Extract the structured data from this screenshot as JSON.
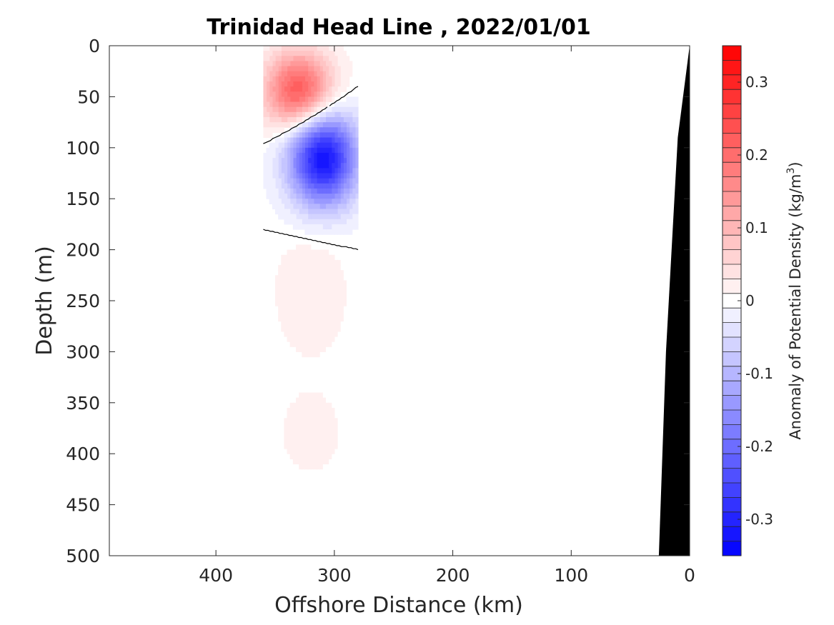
{
  "chart_data": {
    "type": "heatmap",
    "title": "Trinidad Head Line , 2022/01/01",
    "xlabel": "Offshore Distance (km)",
    "ylabel": "Depth (m)",
    "xlim": [
      490,
      0
    ],
    "ylim": [
      0,
      500
    ],
    "x_reversed": true,
    "y_reversed": true,
    "x_ticks": [
      400,
      300,
      200,
      100,
      0
    ],
    "x_tick_labels": [
      "400",
      "300",
      "200",
      "100",
      "0"
    ],
    "y_ticks": [
      0,
      50,
      100,
      150,
      200,
      250,
      300,
      350,
      400,
      450,
      500
    ],
    "y_tick_labels": [
      "0",
      "50",
      "100",
      "150",
      "200",
      "250",
      "300",
      "350",
      "400",
      "450",
      "500"
    ],
    "colorbar": {
      "label_main": "Anomaly of Potential Density (kg/m",
      "label_superscript": "3",
      "label_close": ")",
      "range": [
        -0.35,
        0.35
      ],
      "levels": 35,
      "ticks": [
        0.3,
        0.2,
        0.1,
        0,
        -0.1,
        -0.2,
        -0.3
      ],
      "tick_labels": [
        "0.3",
        "0.2",
        "0.1",
        "0",
        "-0.1",
        "-0.2",
        "-0.3"
      ],
      "colormap": "blue-white-red"
    },
    "data_extent_km": [
      280,
      360
    ],
    "contour_level": 0,
    "anomaly_regions": [
      {
        "type": "positive",
        "peak": 0.24,
        "distance_km": 330,
        "depth_m": 45,
        "depth_range_m": [
          0,
          70
        ]
      },
      {
        "type": "negative",
        "peak": -0.33,
        "distance_km": 310,
        "depth_m": 110,
        "depth_range_m": [
          75,
          160
        ]
      },
      {
        "type": "positive",
        "peak": 0.03,
        "distance_km": 320,
        "depth_m": 240,
        "depth_range_m": [
          180,
          290
        ]
      },
      {
        "type": "positive",
        "peak": 0.02,
        "distance_km": 320,
        "depth_m": 380,
        "depth_range_m": [
          340,
          420
        ]
      }
    ],
    "bathymetry": [
      {
        "distance_km": 0,
        "depth_m": 0
      },
      {
        "distance_km": 10,
        "depth_m": 90
      },
      {
        "distance_km": 20,
        "depth_m": 300
      },
      {
        "distance_km": 26,
        "depth_m": 500
      }
    ]
  }
}
